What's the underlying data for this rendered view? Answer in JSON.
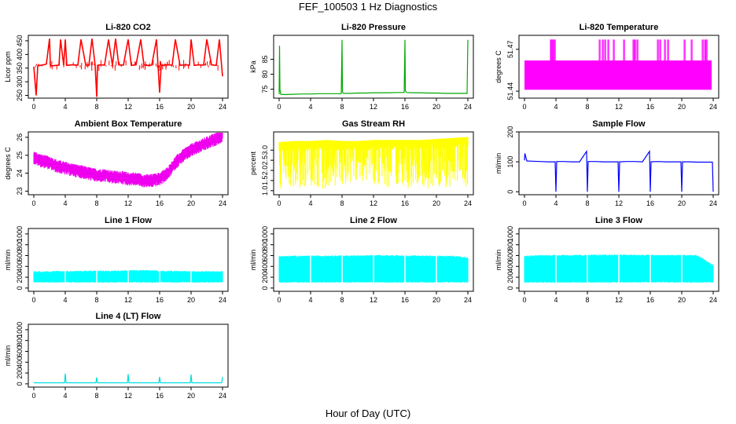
{
  "figure": {
    "title": "FEF_100503  1 Hz Diagnostics",
    "xlabel": "Hour of Day (UTC)"
  },
  "chart_data": [
    {
      "type": "line",
      "title": "Li-820 CO2",
      "xlabel": "",
      "ylabel": "Licor ppm",
      "xlim": [
        0,
        24
      ],
      "ylim": [
        240,
        470
      ],
      "xticks": [
        "0",
        "4",
        "8",
        "12",
        "16",
        "20",
        "24"
      ],
      "yticks": [
        "250",
        "300",
        "350",
        "400",
        "450"
      ],
      "color": "#ff0000",
      "series": [
        {
          "x": [
            0,
            0.3,
            0.5,
            0.8,
            1.2,
            1.6,
            2.0,
            2.1,
            2.2,
            2.8,
            3.2,
            3.4,
            3.8,
            4.0,
            4.2,
            4.8,
            5.6,
            6.0,
            6.6,
            7.0,
            7.4,
            7.8,
            8.0,
            8.1,
            8.4,
            9.0,
            9.5,
            10.0,
            10.4,
            10.8,
            11.4,
            12.0,
            12.4,
            13.0,
            13.6,
            14.0,
            14.4,
            15.0,
            15.6,
            16.0,
            16.2,
            16.8,
            17.6,
            18.0,
            18.6,
            19.2,
            19.8,
            20.0,
            20.4,
            21.0,
            21.6,
            22.0,
            22.6,
            23.2,
            23.6,
            24.0
          ],
          "y": [
            355,
            250,
            358,
            360,
            362,
            365,
            458,
            362,
            358,
            360,
            361,
            455,
            360,
            455,
            360,
            362,
            361,
            455,
            362,
            360,
            458,
            360,
            245,
            360,
            362,
            361,
            455,
            360,
            458,
            362,
            361,
            455,
            360,
            362,
            455,
            362,
            360,
            361,
            455,
            260,
            360,
            362,
            361,
            455,
            360,
            362,
            361,
            455,
            360,
            362,
            361,
            455,
            362,
            360,
            455,
            320
          ]
        }
      ]
    },
    {
      "type": "line",
      "title": "Li-820 Pressure",
      "xlabel": "",
      "ylabel": "kPa",
      "xlim": [
        0,
        24
      ],
      "ylim": [
        72,
        93
      ],
      "xticks": [
        "0",
        "4",
        "8",
        "12",
        "16",
        "20",
        "24"
      ],
      "yticks": [
        "75",
        "80",
        "85"
      ],
      "color": "#00aa00",
      "series": [
        {
          "x": [
            0,
            0.05,
            0.1,
            0.2,
            0.4,
            1,
            2,
            3,
            4,
            5,
            6,
            7,
            7.9,
            8.0,
            8.05,
            8.2,
            9,
            10,
            11,
            12,
            13,
            14,
            15,
            15.9,
            16.0,
            16.05,
            16.2,
            17,
            18,
            19,
            20,
            21,
            22,
            23,
            23.9,
            24.0
          ],
          "y": [
            73.4,
            89.5,
            75,
            73.3,
            73.2,
            73.2,
            73.3,
            73.4,
            73.4,
            73.5,
            73.5,
            73.5,
            73.5,
            91.5,
            74,
            73.6,
            73.6,
            73.7,
            73.7,
            73.8,
            73.8,
            73.8,
            73.9,
            73.9,
            91.5,
            74.5,
            73.9,
            73.8,
            73.8,
            73.7,
            73.7,
            73.6,
            73.6,
            73.6,
            73.6,
            91.5
          ]
        }
      ]
    },
    {
      "type": "line",
      "title": "Li-820 Temperature",
      "xlabel": "",
      "ylabel": "degrees C",
      "xlim": [
        0,
        24
      ],
      "ylim": [
        51.435,
        51.48
      ],
      "xticks": [
        "0",
        "4",
        "8",
        "12",
        "16",
        "20",
        "24"
      ],
      "yticks": [
        "51.44",
        "51.47"
      ],
      "color": "#ff00ff",
      "series": [
        {
          "name": "",
          "x": [
            0,
            23.8
          ],
          "y": [
            51.441,
            51.462
          ]
        },
        {
          "name": "",
          "x": [
            3.3,
            3.4,
            3.6,
            3.8,
            9.5,
            9.9,
            10.2,
            10.6,
            11.3,
            12.6,
            13.8,
            14.0,
            14.3,
            16.9,
            17.2,
            17.8,
            18.2,
            20.3,
            21.2,
            22.6,
            22.9,
            23.1
          ],
          "y": [
            51.477,
            51.477,
            51.477,
            51.477,
            51.477,
            51.477,
            51.477,
            51.477,
            51.477,
            51.477,
            51.477,
            51.477,
            51.477,
            51.477,
            51.477,
            51.477,
            51.477,
            51.477,
            51.477,
            51.477,
            51.477,
            51.477
          ]
        }
      ]
    },
    {
      "type": "line",
      "title": "Ambient Box Temperature",
      "xlabel": "",
      "ylabel": "degrees C",
      "xlim": [
        0,
        24
      ],
      "ylim": [
        22.8,
        26.3
      ],
      "xticks": [
        "0",
        "4",
        "8",
        "12",
        "16",
        "20",
        "24"
      ],
      "yticks": [
        "23",
        "24",
        "25",
        "26"
      ],
      "color": "#ee00ee",
      "series": [
        {
          "x": [
            0,
            1,
            2,
            3,
            4,
            5,
            6,
            7,
            8,
            9,
            10,
            11,
            12,
            13,
            14,
            15,
            16,
            17,
            18,
            19,
            20,
            21,
            22,
            23,
            24
          ],
          "y": [
            24.9,
            24.7,
            24.6,
            24.4,
            24.3,
            24.2,
            24.1,
            24.0,
            23.9,
            23.9,
            23.8,
            23.8,
            23.7,
            23.7,
            23.6,
            23.6,
            23.7,
            24.0,
            24.6,
            25.0,
            25.3,
            25.5,
            25.7,
            25.9,
            26.1
          ]
        }
      ]
    },
    {
      "type": "line",
      "title": "Gas Stream RH",
      "xlabel": "",
      "ylabel": "percent",
      "xlim": [
        0,
        24
      ],
      "ylim": [
        0.8,
        3.9
      ],
      "xticks": [
        "0",
        "4",
        "8",
        "12",
        "16",
        "20",
        "24"
      ],
      "yticks": [
        "1.0",
        "1.5",
        "2.0",
        "2.5",
        "3.0"
      ],
      "color": "#ffff00",
      "series": [
        {
          "x": [
            0,
            2,
            4,
            6,
            8,
            10,
            12,
            14,
            16,
            18,
            20,
            22,
            24
          ],
          "y": [
            3.4,
            3.45,
            3.45,
            3.5,
            3.45,
            3.45,
            3.5,
            3.5,
            3.5,
            3.5,
            3.55,
            3.6,
            3.65
          ]
        }
      ]
    },
    {
      "type": "line",
      "title": "Sample Flow",
      "xlabel": "",
      "ylabel": "ml/min",
      "xlim": [
        0,
        24
      ],
      "ylim": [
        -10,
        200
      ],
      "xticks": [
        "0",
        "4",
        "8",
        "12",
        "16",
        "20",
        "24"
      ],
      "yticks": [
        "0",
        "100",
        "200"
      ],
      "color": "#0000ff",
      "series": [
        {
          "x": [
            0,
            0.05,
            0.3,
            1,
            2,
            3,
            3.9,
            4.0,
            4.1,
            5,
            6,
            7,
            7.9,
            8.0,
            8.1,
            9,
            10,
            11,
            11.9,
            12.0,
            12.1,
            13,
            14,
            15,
            15.9,
            16.0,
            16.1,
            17,
            18,
            19,
            19.9,
            20.0,
            20.1,
            21,
            22,
            23,
            23.9,
            24.0
          ],
          "y": [
            105,
            128,
            103,
            102,
            101,
            100,
            100,
            0,
            101,
            101,
            100,
            100,
            135,
            0,
            101,
            101,
            100,
            100,
            100,
            0,
            100,
            101,
            101,
            100,
            135,
            0,
            100,
            101,
            100,
            100,
            100,
            0,
            100,
            100,
            99,
            99,
            99,
            0
          ]
        }
      ]
    },
    {
      "type": "line",
      "title": "Line 1 Flow",
      "xlabel": "",
      "ylabel": "ml/min",
      "xlim": [
        0,
        24
      ],
      "ylim": [
        -60,
        1100
      ],
      "xticks": [
        "0",
        "4",
        "8",
        "12",
        "16",
        "20",
        "24"
      ],
      "yticks": [
        "0",
        "200",
        "400",
        "600",
        "800",
        "1000"
      ],
      "color": "#00ffff",
      "series": [
        {
          "x": [
            0,
            2,
            4,
            6,
            8,
            10,
            12,
            14,
            16,
            18,
            20,
            22,
            24
          ],
          "y": [
            300,
            300,
            305,
            305,
            310,
            310,
            320,
            320,
            310,
            305,
            300,
            300,
            300
          ]
        }
      ]
    },
    {
      "type": "line",
      "title": "Line 2 Flow",
      "xlabel": "",
      "ylabel": "ml/min",
      "xlim": [
        0,
        24
      ],
      "ylim": [
        -60,
        1100
      ],
      "xticks": [
        "0",
        "4",
        "8",
        "12",
        "16",
        "20",
        "24"
      ],
      "yticks": [
        "0",
        "200",
        "400",
        "600",
        "800",
        "1000"
      ],
      "color": "#00ffff",
      "series": [
        {
          "x": [
            0,
            2,
            4,
            6,
            8,
            10,
            12,
            14,
            16,
            18,
            20,
            22,
            24
          ],
          "y": [
            580,
            585,
            585,
            590,
            590,
            590,
            595,
            595,
            590,
            590,
            585,
            585,
            560
          ]
        }
      ]
    },
    {
      "type": "line",
      "title": "Line 3 Flow",
      "xlabel": "",
      "ylabel": "ml/min",
      "xlim": [
        0,
        24
      ],
      "ylim": [
        -60,
        1100
      ],
      "xticks": [
        "0",
        "4",
        "8",
        "12",
        "16",
        "20",
        "24"
      ],
      "yticks": [
        "0",
        "200",
        "400",
        "600",
        "800",
        "1000"
      ],
      "color": "#00ffff",
      "series": [
        {
          "x": [
            0,
            2,
            4,
            6,
            8,
            10,
            12,
            14,
            16,
            18,
            20,
            22,
            24
          ],
          "y": [
            590,
            595,
            600,
            600,
            600,
            605,
            605,
            605,
            600,
            600,
            600,
            595,
            420
          ]
        }
      ]
    },
    {
      "type": "line",
      "title": "Line 4 (LT) Flow",
      "xlabel": "",
      "ylabel": "ml/min",
      "xlim": [
        0,
        24
      ],
      "ylim": [
        -60,
        1100
      ],
      "xticks": [
        "0",
        "4",
        "8",
        "12",
        "16",
        "20",
        "24"
      ],
      "yticks": [
        "0",
        "200",
        "400",
        "600",
        "800",
        "1000"
      ],
      "color": "#00dddd",
      "series": [
        {
          "x": [
            0,
            3.9,
            4.0,
            4.1,
            7.9,
            8.0,
            8.1,
            11.9,
            12.0,
            12.1,
            15.9,
            16.0,
            16.1,
            19.9,
            20.0,
            20.1,
            23.9,
            24.0
          ],
          "y": [
            20,
            20,
            190,
            20,
            20,
            120,
            20,
            20,
            180,
            20,
            20,
            130,
            20,
            20,
            170,
            20,
            20,
            130
          ]
        }
      ]
    }
  ]
}
